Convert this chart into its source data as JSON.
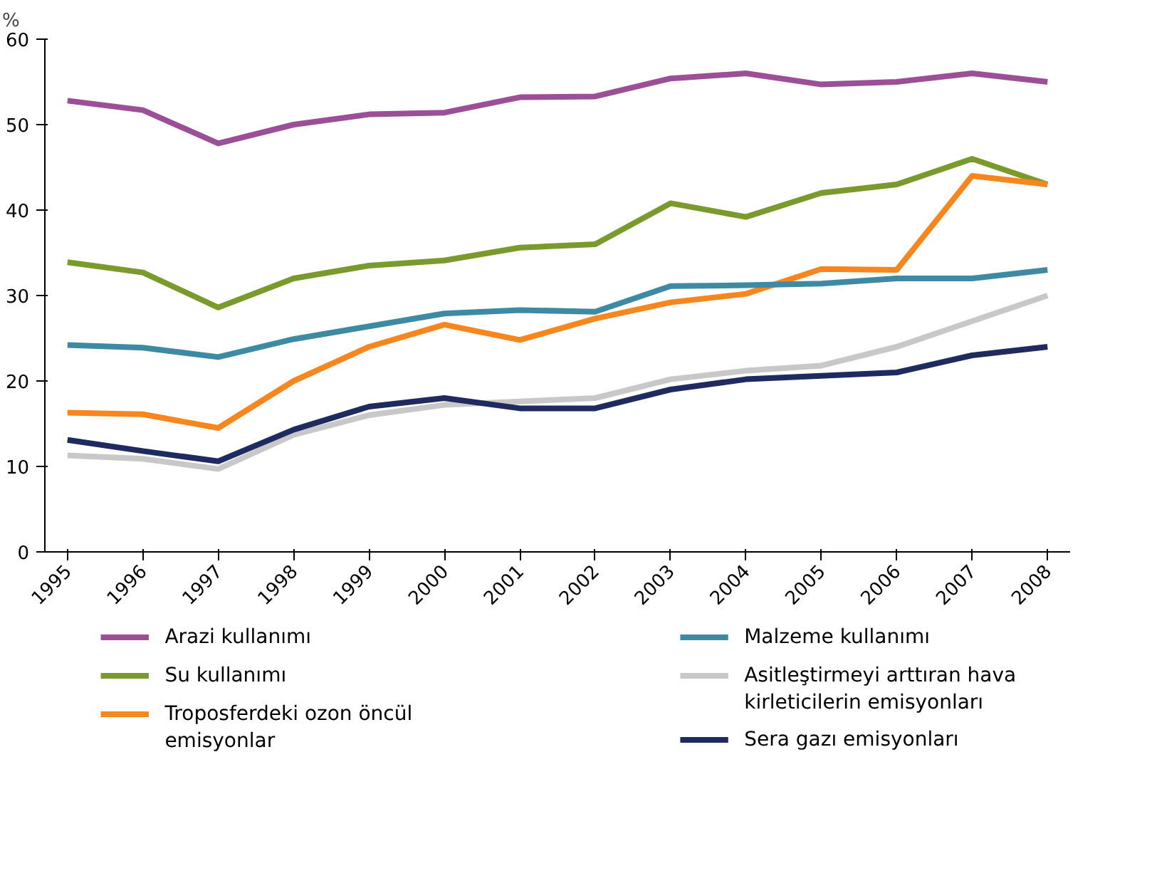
{
  "chart_data": {
    "type": "line",
    "ylabel": "%",
    "categories": [
      "1995",
      "1996",
      "1997",
      "1998",
      "1999",
      "2000",
      "2001",
      "2002",
      "2003",
      "2004",
      "2005",
      "2006",
      "2007",
      "2008"
    ],
    "ylim": [
      0,
      60
    ],
    "yticks": [
      0,
      10,
      20,
      30,
      40,
      50,
      60
    ],
    "grid": false,
    "legend": "bottom",
    "line_style": "solid",
    "marker": "none",
    "series": [
      {
        "name": "Arazi kullanımı",
        "color": "#9b4f96",
        "values": [
          52.8,
          51.7,
          47.8,
          50,
          51.2,
          51.4,
          53.2,
          53.3,
          55.4,
          56,
          54.7,
          55,
          56,
          55
        ]
      },
      {
        "name": "Su kullanımı",
        "color": "#7a9a2e",
        "values": [
          33.9,
          32.7,
          28.6,
          32,
          33.5,
          34.1,
          35.6,
          36,
          40.8,
          39.2,
          42,
          43,
          46,
          43
        ]
      },
      {
        "name": "Troposferdeki ozon öncül emisyonlar",
        "color": "#f7861e",
        "values": [
          16.3,
          16.1,
          14.5,
          20,
          24,
          26.6,
          24.8,
          27.3,
          29.2,
          30.2,
          33.1,
          33,
          44,
          43
        ]
      },
      {
        "name": "Malzeme kullanımı",
        "color": "#3f8aa3",
        "values": [
          24.2,
          23.9,
          22.8,
          24.9,
          26.4,
          27.9,
          28.3,
          28.1,
          31.1,
          31.2,
          31.4,
          32,
          32,
          33
        ]
      },
      {
        "name": "Asitleştirmeyi arttıran hava kirleticilerin emisyonları",
        "color": "#c8c8c8",
        "values": [
          11.3,
          10.9,
          9.7,
          13.7,
          16,
          17.2,
          17.6,
          18,
          20.2,
          21.2,
          21.8,
          24,
          27,
          30
        ]
      },
      {
        "name": "Sera gazı emisyonları",
        "color": "#1f2a5e",
        "values": [
          13.1,
          11.8,
          10.6,
          14.3,
          17,
          18,
          16.8,
          16.8,
          19,
          20.2,
          20.6,
          21,
          23,
          24
        ]
      }
    ]
  }
}
